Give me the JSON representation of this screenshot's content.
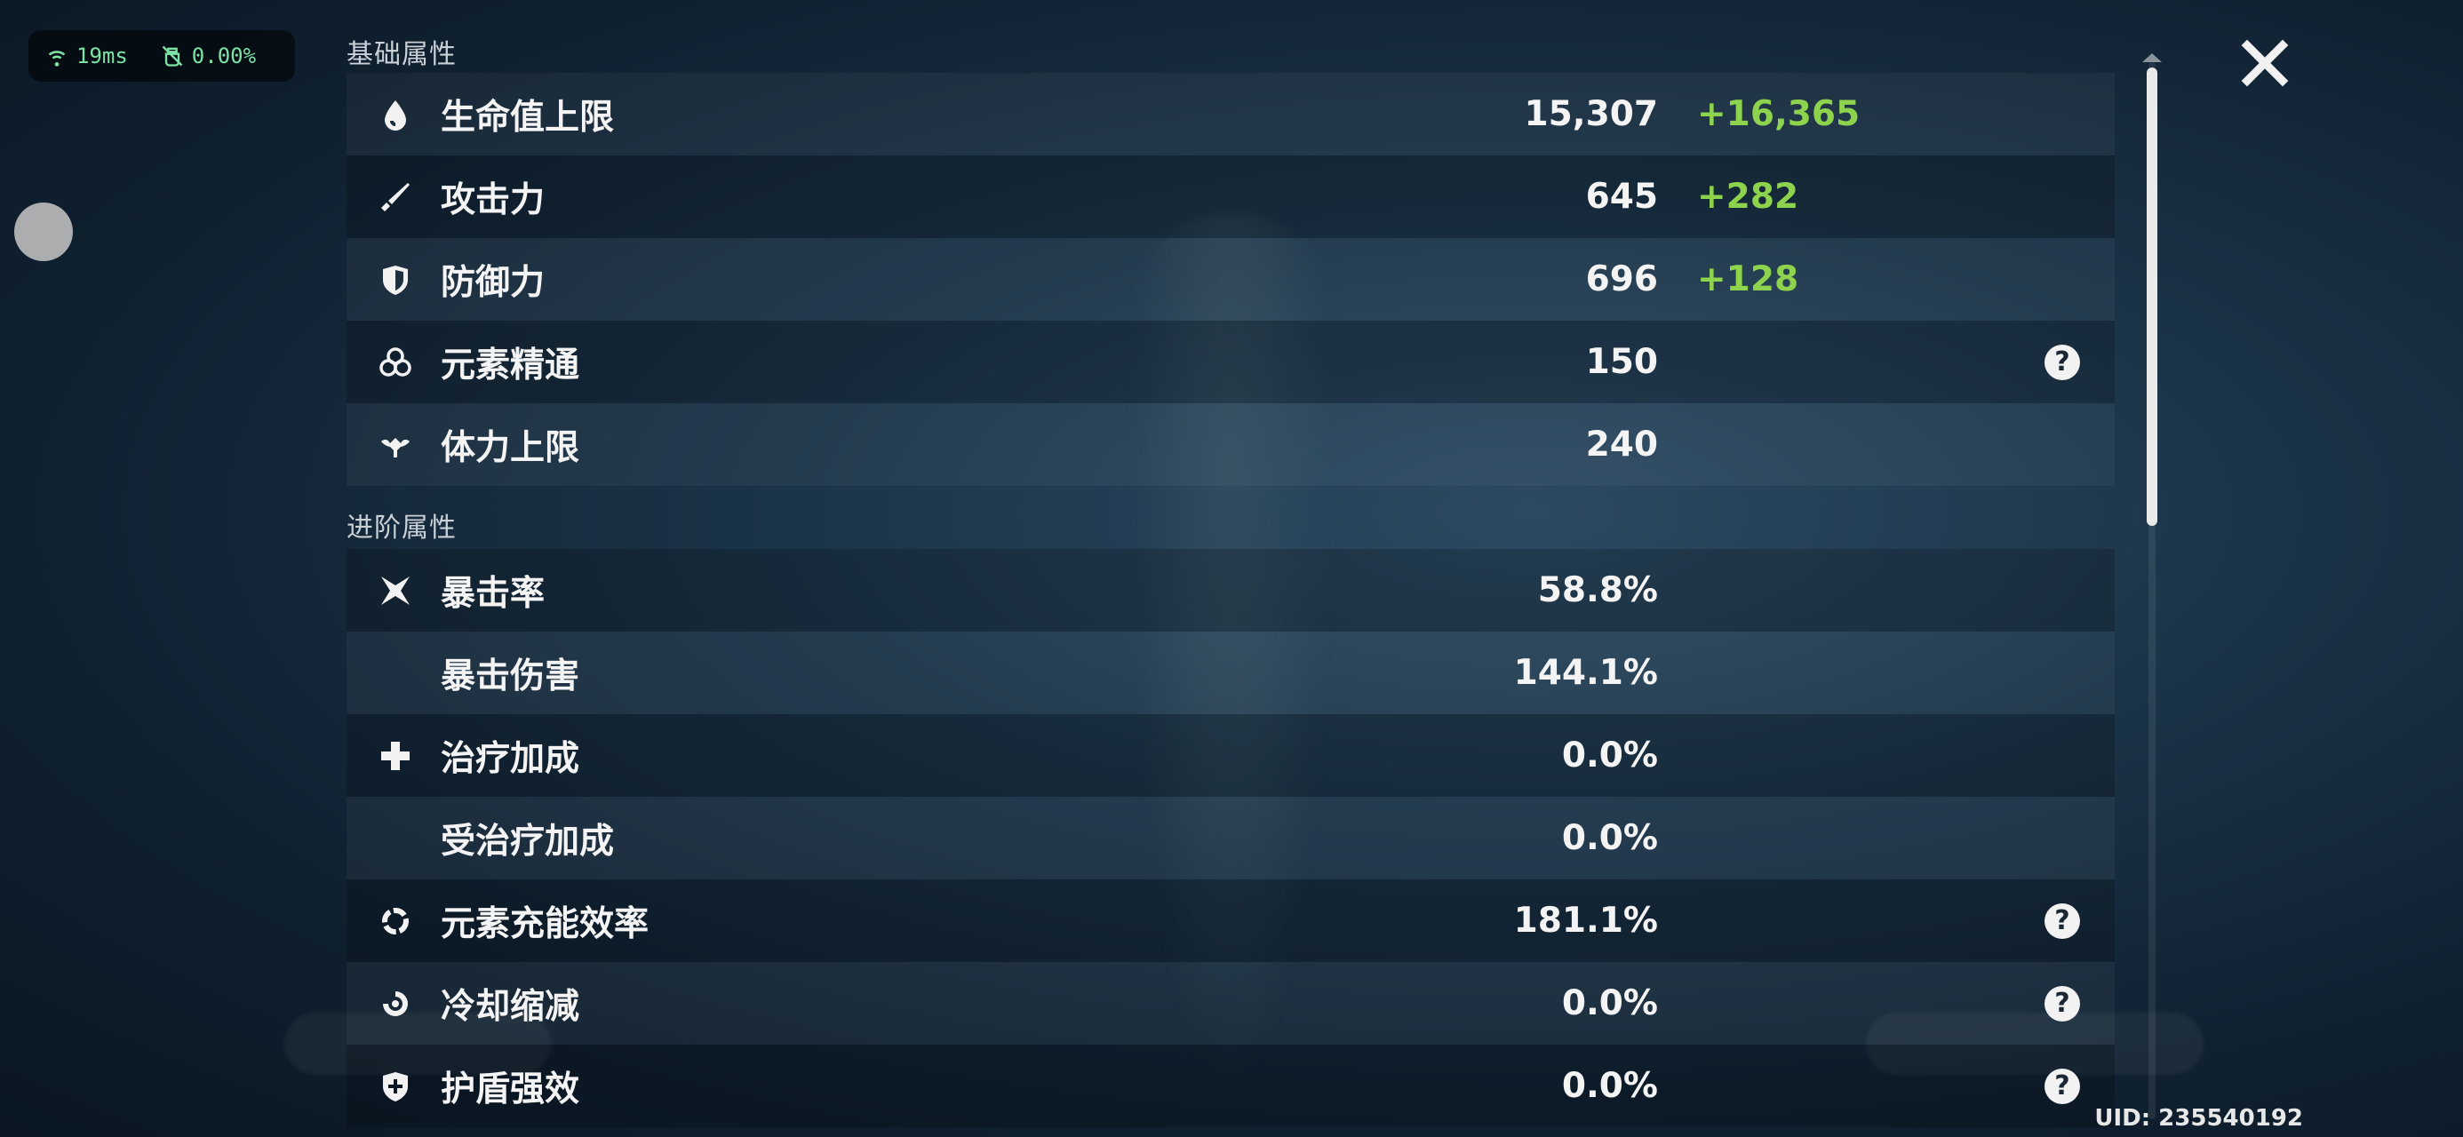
{
  "hud": {
    "ping": "19ms",
    "loss": "0.00%"
  },
  "sections": {
    "base_title": "基础属性",
    "advanced_title": "进阶属性"
  },
  "base_stats": [
    {
      "icon": "hp-drop-icon",
      "label": "生命值上限",
      "value": "15,307",
      "bonus": "+16,365"
    },
    {
      "icon": "sword-icon",
      "label": "攻击力",
      "value": "645",
      "bonus": "+282"
    },
    {
      "icon": "shield-icon",
      "label": "防御力",
      "value": "696",
      "bonus": "+128"
    },
    {
      "icon": "elemental-mastery-icon",
      "label": "元素精通",
      "value": "150",
      "help": "?"
    },
    {
      "icon": "stamina-icon",
      "label": "体力上限",
      "value": "240"
    }
  ],
  "advanced_stats": [
    {
      "icon": "crit-icon",
      "label": "暴击率",
      "value": "58.8%"
    },
    {
      "icon": "",
      "label": "暴击伤害",
      "value": "144.1%"
    },
    {
      "icon": "healing-cross-icon",
      "label": "治疗加成",
      "value": "0.0%"
    },
    {
      "icon": "",
      "label": "受治疗加成",
      "value": "0.0%"
    },
    {
      "icon": "energy-recharge-icon",
      "label": "元素充能效率",
      "value": "181.1%",
      "help": "?"
    },
    {
      "icon": "cooldown-icon",
      "label": "冷却缩减",
      "value": "0.0%",
      "help": "?"
    },
    {
      "icon": "shield-strength-icon",
      "label": "护盾强效",
      "value": "0.0%",
      "help": "?"
    }
  ],
  "footer": {
    "uid": "UID: 235540192"
  }
}
